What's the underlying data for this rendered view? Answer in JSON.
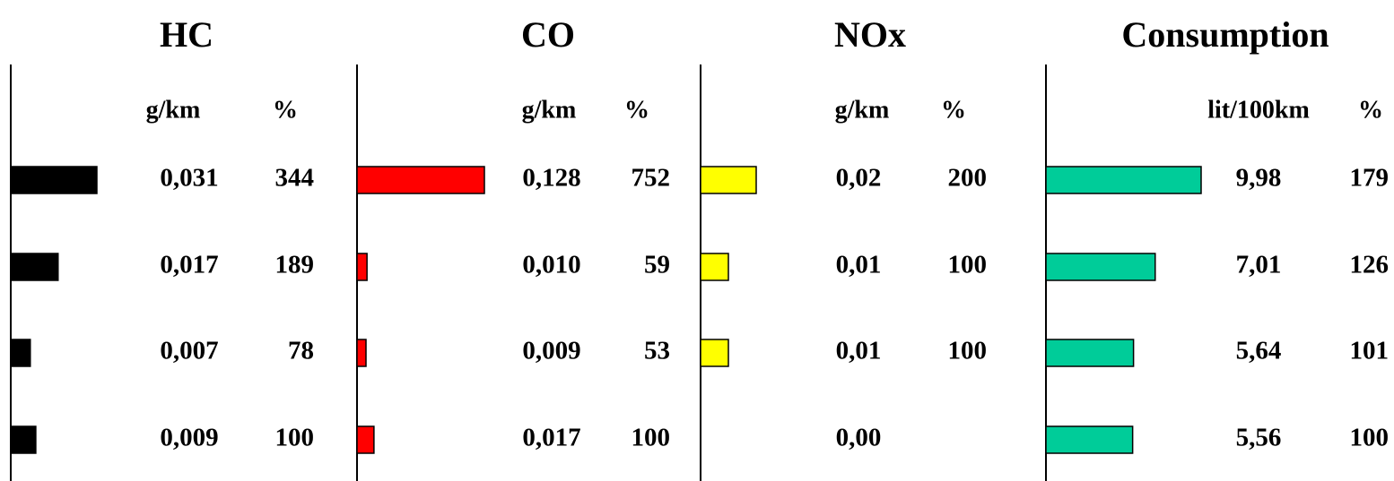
{
  "chart_data": {
    "type": "bar",
    "orientation": "horizontal",
    "rows": 4,
    "bar_direction": "left-to-right",
    "panels": [
      {
        "title": "HC",
        "unit_label": "g/km",
        "pct_label": "%",
        "color": "#000000",
        "values": [
          "0,031",
          "0,017",
          "0,007",
          "0,009"
        ],
        "percent": [
          344,
          189,
          78,
          100
        ]
      },
      {
        "title": "CO",
        "unit_label": "g/km",
        "pct_label": "%",
        "color": "#ff0000",
        "values": [
          "0,128",
          "0,010",
          "0,009",
          "0,017"
        ],
        "percent": [
          752,
          59,
          53,
          100
        ]
      },
      {
        "title": "NOx",
        "unit_label": "g/km",
        "pct_label": "%",
        "color": "#ffff00",
        "values": [
          "0,02",
          "0,01",
          "0,01",
          "0,00"
        ],
        "percent": [
          200,
          100,
          100,
          null
        ]
      },
      {
        "title": "Consumption",
        "unit_label": "lit/100km",
        "pct_label": "%",
        "color": "#00cc99",
        "values": [
          "9,98",
          "7,01",
          "5,64",
          "5,56"
        ],
        "percent": [
          179,
          126,
          101,
          100
        ]
      }
    ]
  }
}
